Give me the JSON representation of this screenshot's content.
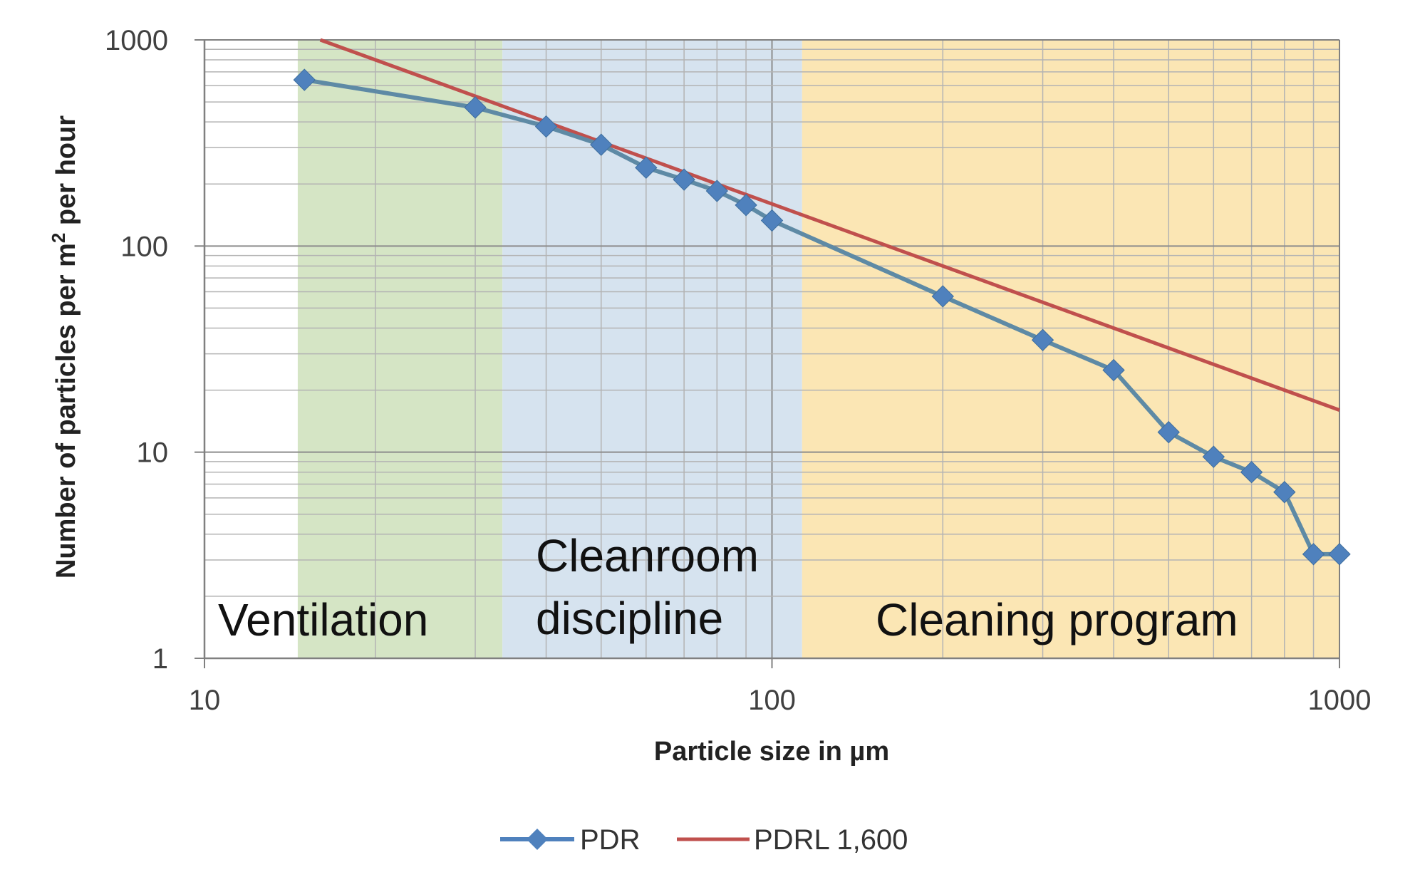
{
  "chart_data": {
    "type": "line",
    "x_scale": "log",
    "y_scale": "log",
    "xlim": [
      10,
      1000
    ],
    "ylim": [
      1,
      1000
    ],
    "xlabel": "Particle size in µm",
    "ylabel_parts": {
      "before": "Number of particles per m",
      "sup": "2",
      "after": " per hour"
    },
    "x_ticks": [
      10,
      100,
      1000
    ],
    "y_ticks": [
      1,
      10,
      100,
      1000
    ],
    "grid": true,
    "legend_position": "bottom",
    "zones": [
      {
        "label_lines": [
          "Ventilation"
        ],
        "x_from": 14.6,
        "x_to": 33.5,
        "color": "#d5e5c5"
      },
      {
        "label_lines": [
          "Cleanroom",
          "discipline"
        ],
        "x_from": 33.5,
        "x_to": 113,
        "color": "#d6e3ef"
      },
      {
        "label_lines": [
          "Cleaning program"
        ],
        "x_from": 113,
        "x_to": 1000,
        "color": "#fbe6b4"
      }
    ],
    "series": [
      {
        "name": "PDR",
        "color": "#4f81bd",
        "line_color": "#5e8aa5",
        "marker": "diamond",
        "points": [
          [
            15,
            640
          ],
          [
            30,
            470
          ],
          [
            40,
            380
          ],
          [
            50,
            310
          ],
          [
            60,
            240
          ],
          [
            70,
            210
          ],
          [
            80,
            185
          ],
          [
            90,
            158
          ],
          [
            100,
            133
          ],
          [
            200,
            57
          ],
          [
            300,
            35
          ],
          [
            400,
            25
          ],
          [
            500,
            12.5
          ],
          [
            600,
            9.5
          ],
          [
            700,
            8
          ],
          [
            800,
            6.4
          ],
          [
            900,
            3.2
          ],
          [
            1000,
            3.2
          ]
        ]
      },
      {
        "name": "PDRL 1,600",
        "color": "#c0504d",
        "marker": "none",
        "points": [
          [
            16,
            1000
          ],
          [
            1000,
            16
          ]
        ]
      }
    ]
  }
}
